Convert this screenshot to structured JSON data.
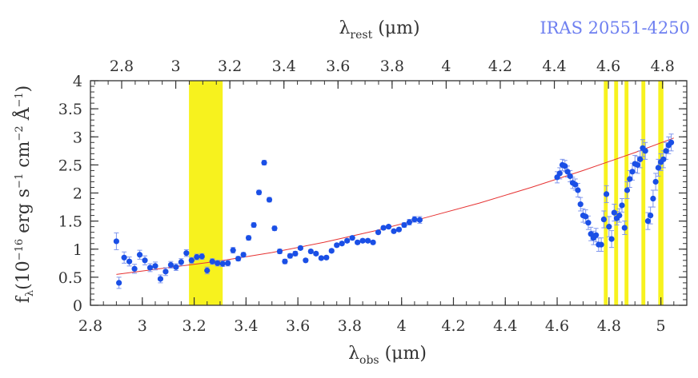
{
  "chart_data": {
    "type": "scatter",
    "object_label": "IRAS 20551-4250",
    "xlabel": {
      "main": "λ",
      "sub": "obs",
      "rest": " (μm)"
    },
    "x2label": {
      "main": "λ",
      "sub": "rest",
      "rest": " (μm)"
    },
    "ylabel": {
      "a": "f",
      "a_sub": "λ",
      "b": "(10",
      "b_sup": "−16",
      "c": " erg s",
      "c_sup": "−1",
      "d": " cm",
      "d_sup": "−2",
      "e": " Å",
      "e_sup": "−1",
      "f": ")"
    },
    "xlim": [
      2.8,
      5.1
    ],
    "ylim": [
      0,
      4
    ],
    "x_ticks": [
      "2.8",
      "3",
      "3.2",
      "3.4",
      "3.6",
      "3.8",
      "4",
      "4.2",
      "4.4",
      "4.6",
      "4.8",
      "5"
    ],
    "y_ticks": [
      "0",
      "0.5",
      "1",
      "1.5",
      "2",
      "2.5",
      "3",
      "3.5",
      "4"
    ],
    "x2_ticks": [
      "2.8",
      "3",
      "3.2",
      "3.4",
      "3.6",
      "3.8",
      "4",
      "4.2",
      "4.4",
      "4.6",
      "4.8"
    ],
    "redshift": 0.043,
    "grid": false,
    "colors": {
      "points": "#1a4fe6",
      "errorbars": "#7f96ee",
      "fit": "#e63333",
      "bands": "#f7f21e",
      "axes": "#333333"
    },
    "shaded_bands": [
      [
        3.18,
        3.31
      ],
      [
        4.78,
        4.795
      ],
      [
        4.82,
        4.835
      ],
      [
        4.86,
        4.875
      ],
      [
        4.925,
        4.94
      ],
      [
        4.99,
        5.01
      ]
    ],
    "continuum_fit": {
      "x": [
        2.9,
        3.1,
        3.3,
        3.5,
        3.7,
        3.9,
        4.1,
        4.3,
        4.5,
        4.7,
        4.9,
        5.05
      ],
      "y": [
        0.55,
        0.67,
        0.79,
        0.94,
        1.12,
        1.33,
        1.57,
        1.82,
        2.1,
        2.4,
        2.72,
        2.98
      ]
    },
    "series": [
      {
        "x": [
          2.9,
          2.91,
          2.93,
          2.95,
          2.97,
          2.99,
          3.01,
          3.03,
          3.05,
          3.07,
          3.09,
          3.11,
          3.13,
          3.15,
          3.17,
          3.19,
          3.21,
          3.23,
          3.25,
          3.27,
          3.29,
          3.31,
          3.33,
          3.35,
          3.37,
          3.39,
          3.41,
          3.43,
          3.45,
          3.47,
          3.49,
          3.51,
          3.53,
          3.55,
          3.57,
          3.59,
          3.61,
          3.63,
          3.65,
          3.67,
          3.69,
          3.71,
          3.73,
          3.75,
          3.77,
          3.79,
          3.81,
          3.83,
          3.85,
          3.87,
          3.89,
          3.91,
          3.93,
          3.95,
          3.97,
          3.99,
          4.01,
          4.03,
          4.05,
          4.07,
          4.6,
          4.61,
          4.62,
          4.63,
          4.64,
          4.65,
          4.66,
          4.67,
          4.68,
          4.69,
          4.7,
          4.71,
          4.72,
          4.73,
          4.74,
          4.75,
          4.76,
          4.77,
          4.78,
          4.79,
          4.8,
          4.81,
          4.82,
          4.83,
          4.84,
          4.85,
          4.86,
          4.87,
          4.88,
          4.89,
          4.9,
          4.91,
          4.92,
          4.93,
          4.94,
          4.95,
          4.96,
          4.97,
          4.98,
          4.99,
          5.0,
          5.01,
          5.02,
          5.03,
          5.04
        ],
        "y": [
          1.14,
          0.4,
          0.85,
          0.78,
          0.65,
          0.9,
          0.8,
          0.67,
          0.7,
          0.47,
          0.6,
          0.72,
          0.68,
          0.77,
          0.93,
          0.8,
          0.86,
          0.87,
          0.62,
          0.78,
          0.75,
          0.74,
          0.75,
          0.98,
          0.83,
          0.9,
          1.2,
          1.43,
          2.01,
          2.54,
          1.88,
          1.37,
          0.96,
          0.78,
          0.88,
          0.92,
          1.02,
          0.8,
          0.96,
          0.92,
          0.84,
          0.85,
          0.97,
          1.07,
          1.1,
          1.15,
          1.2,
          1.12,
          1.15,
          1.15,
          1.12,
          1.3,
          1.38,
          1.4,
          1.32,
          1.35,
          1.43,
          1.48,
          1.53,
          1.52,
          2.28,
          2.35,
          2.5,
          2.48,
          2.38,
          2.3,
          2.18,
          2.15,
          2.05,
          1.8,
          1.6,
          1.58,
          1.47,
          1.27,
          1.2,
          1.25,
          1.08,
          1.08,
          1.53,
          1.98,
          1.4,
          1.18,
          1.65,
          1.55,
          1.6,
          1.78,
          1.38,
          2.05,
          2.25,
          2.38,
          2.52,
          2.5,
          2.6,
          2.8,
          2.75,
          1.5,
          1.6,
          1.9,
          2.2,
          2.45,
          2.55,
          2.6,
          2.75,
          2.85,
          2.9
        ],
        "err": [
          0.15,
          0.1,
          0.1,
          0.08,
          0.08,
          0.08,
          0.08,
          0.07,
          0.07,
          0.07,
          0.07,
          0.06,
          0.06,
          0.06,
          0.06,
          0.05,
          0.05,
          0.05,
          0.06,
          0.05,
          0.05,
          0.05,
          0.05,
          0.05,
          0.04,
          0.04,
          0.04,
          0.04,
          0.04,
          0.04,
          0.04,
          0.04,
          0.04,
          0.04,
          0.04,
          0.04,
          0.03,
          0.03,
          0.03,
          0.03,
          0.03,
          0.03,
          0.03,
          0.03,
          0.03,
          0.03,
          0.03,
          0.03,
          0.03,
          0.03,
          0.03,
          0.03,
          0.03,
          0.03,
          0.03,
          0.03,
          0.04,
          0.05,
          0.05,
          0.06,
          0.1,
          0.1,
          0.1,
          0.1,
          0.1,
          0.1,
          0.1,
          0.1,
          0.12,
          0.12,
          0.12,
          0.12,
          0.12,
          0.12,
          0.12,
          0.12,
          0.12,
          0.12,
          0.15,
          0.15,
          0.18,
          0.15,
          0.15,
          0.12,
          0.12,
          0.12,
          0.12,
          0.15,
          0.15,
          0.15,
          0.15,
          0.15,
          0.15,
          0.15,
          0.15,
          0.15,
          0.15,
          0.15,
          0.15,
          0.15,
          0.15,
          0.15,
          0.15,
          0.15,
          0.15
        ]
      }
    ]
  }
}
